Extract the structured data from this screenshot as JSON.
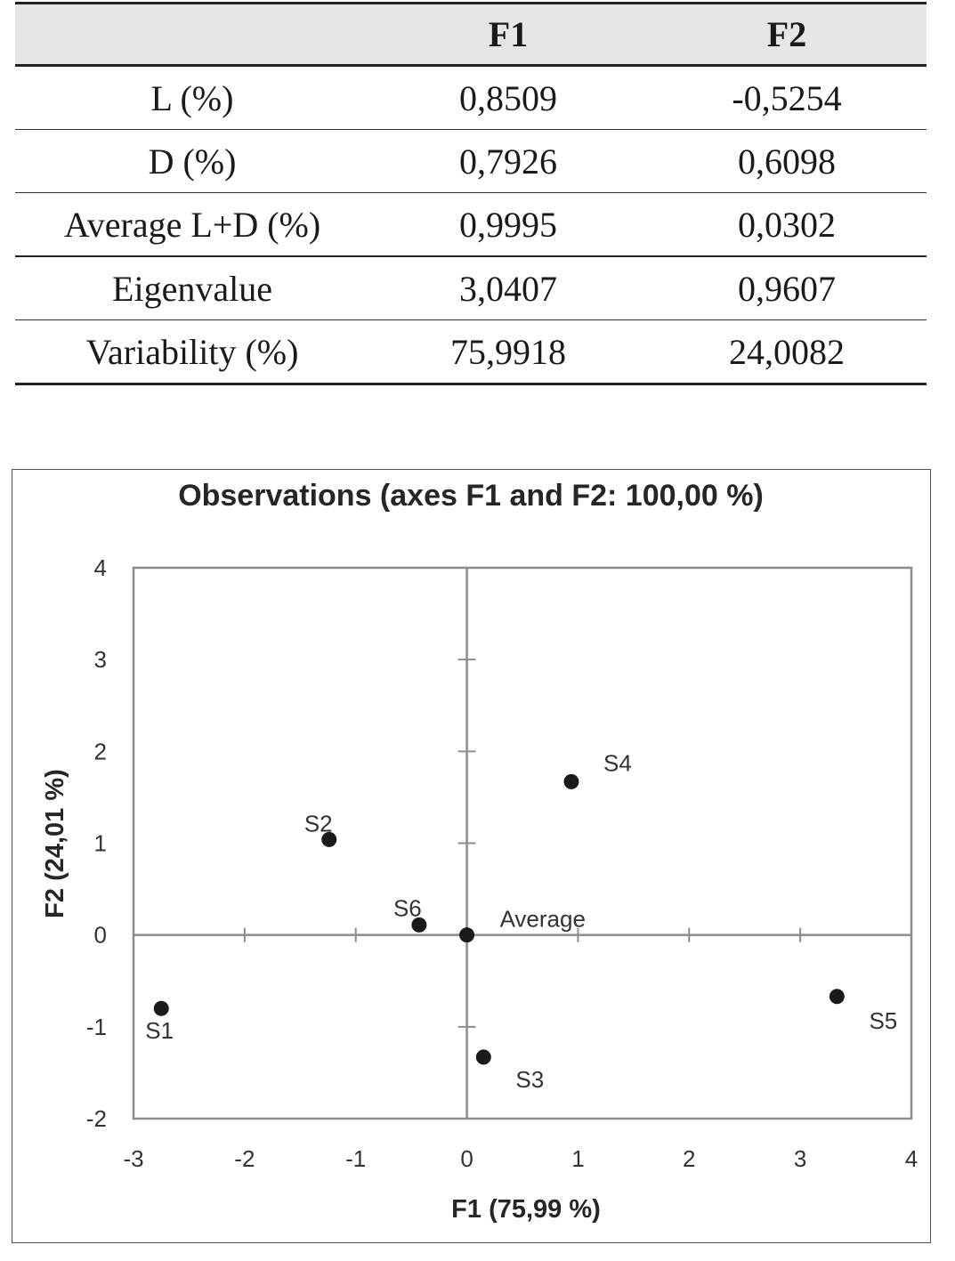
{
  "table": {
    "headers": [
      "",
      "F1",
      "F2"
    ],
    "rows": [
      {
        "label": "L (%)",
        "f1": "0,8509",
        "f2": "-0,5254"
      },
      {
        "label": "D (%)",
        "f1": "0,7926",
        "f2": "0,6098"
      },
      {
        "label": "Average L+D (%)",
        "f1": "0,9995",
        "f2": "0,0302"
      },
      {
        "label": "Eigenvalue",
        "f1": "3,0407",
        "f2": "0,9607"
      },
      {
        "label": "Variability (%)",
        "f1": "75,9918",
        "f2": "24,0082"
      }
    ]
  },
  "chart_data": {
    "type": "scatter",
    "title": "Observations (axes F1 and F2: 100,00 %)",
    "xlabel": "F1 (75,99 %)",
    "ylabel": "F2 (24,01 %)",
    "xlim": [
      -3,
      4
    ],
    "ylim": [
      -2,
      4
    ],
    "xticks": [
      "-3",
      "-2",
      "-1",
      "0",
      "1",
      "2",
      "3",
      "4"
    ],
    "yticks": [
      "-2",
      "-1",
      "0",
      "1",
      "2",
      "3",
      "4"
    ],
    "grid": false,
    "colors": {
      "points": "#1a1a1a",
      "axes": "#8c8c8c"
    },
    "points": [
      {
        "label": "S1",
        "x": -2.75,
        "y": -0.8
      },
      {
        "label": "S2",
        "x": -1.24,
        "y": 1.04
      },
      {
        "label": "S3",
        "x": 0.15,
        "y": -1.33
      },
      {
        "label": "S4",
        "x": 0.94,
        "y": 1.67
      },
      {
        "label": "S5",
        "x": 3.33,
        "y": -0.67
      },
      {
        "label": "S6",
        "x": -0.43,
        "y": 0.11
      },
      {
        "label": "Average",
        "x": 0.0,
        "y": 0.0
      }
    ]
  }
}
